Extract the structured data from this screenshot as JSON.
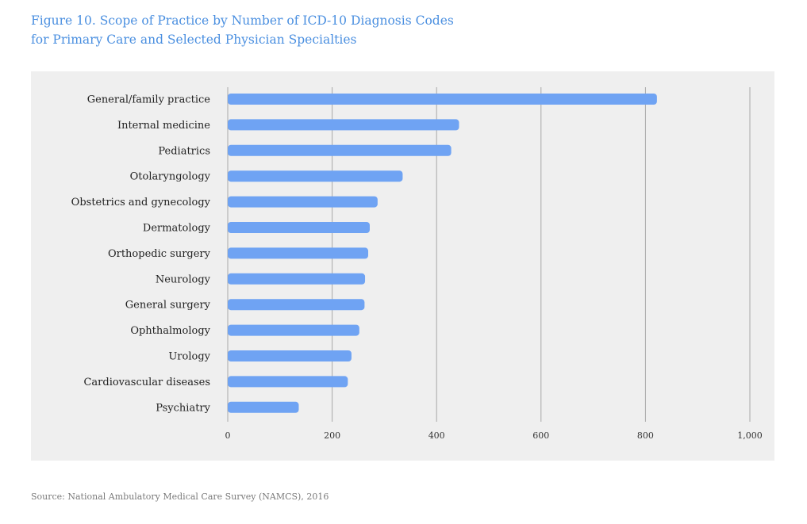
{
  "title_line1": "Figure 10. Scope of Practice by Number of ICD-10 Diagnosis Codes",
  "title_line2": "for Primary Care and Selected Physician Specialties",
  "source": "Source: National Ambulatory Medical Care Survey (NAMCS), 2016",
  "colors": {
    "bar": "#6fa3f3",
    "grid": "#a8a8a8",
    "panel": "#efefef",
    "title": "#4a8fe0"
  },
  "chart_data": {
    "type": "bar",
    "orientation": "horizontal",
    "categories": [
      "General/family practice",
      "Internal medicine",
      "Pediatrics",
      "Otolaryngology",
      "Obstetrics and gynecology",
      "Dermatology",
      "Orthopedic surgery",
      "Neurology",
      "General surgery",
      "Ophthalmology",
      "Urology",
      "Cardiovascular diseases",
      "Psychiatry"
    ],
    "values": [
      822,
      443,
      428,
      335,
      287,
      272,
      269,
      263,
      262,
      252,
      237,
      230,
      136
    ],
    "xlim": [
      0,
      1000
    ],
    "xticks": [
      0,
      200,
      400,
      600,
      800,
      1000
    ],
    "xtick_labels": [
      "0",
      "200",
      "400",
      "600",
      "800",
      "1,000"
    ],
    "grid": true,
    "legend": "none"
  }
}
